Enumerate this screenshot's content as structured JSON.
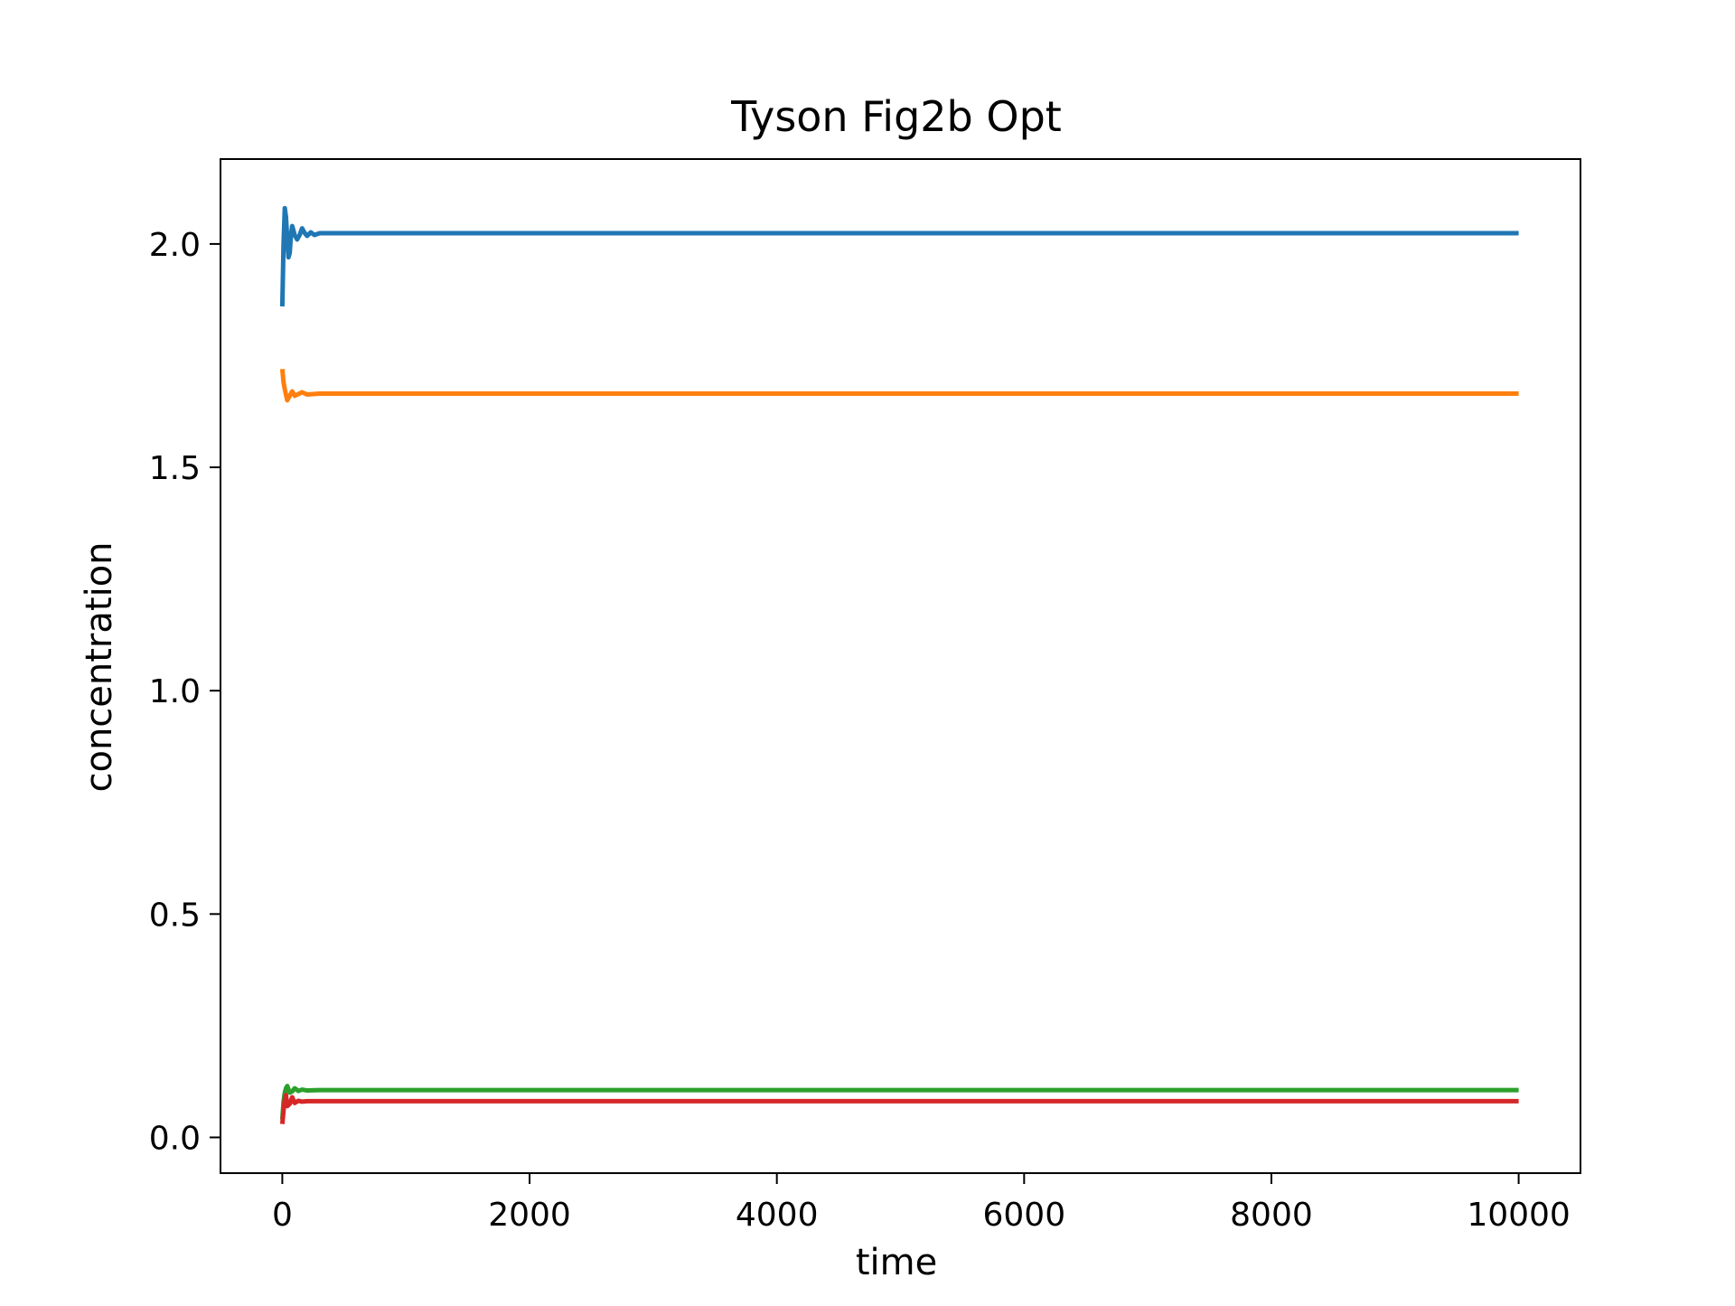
{
  "chart_data": {
    "type": "line",
    "title": "Tyson Fig2b Opt",
    "xlabel": "time",
    "ylabel": "concentration",
    "xlim": [
      -500,
      10500
    ],
    "ylim": [
      -0.08,
      2.19
    ],
    "grid": false,
    "xticks": [
      0,
      2000,
      4000,
      6000,
      8000,
      10000
    ],
    "xtick_labels": [
      "0",
      "2000",
      "4000",
      "6000",
      "8000",
      "10000"
    ],
    "yticks": [
      0.0,
      0.5,
      1.0,
      1.5,
      2.0
    ],
    "ytick_labels": [
      "0.0",
      "0.5",
      "1.0",
      "1.5",
      "2.0"
    ],
    "series": [
      {
        "color": "#1f77b4",
        "x": [
          0,
          10,
          20,
          30,
          40,
          50,
          60,
          70,
          80,
          100,
          120,
          140,
          160,
          180,
          200,
          230,
          260,
          300,
          400,
          10000
        ],
        "values": [
          1.86,
          2.0,
          2.08,
          2.06,
          2.01,
          1.97,
          1.98,
          2.02,
          2.04,
          2.02,
          2.01,
          2.02,
          2.035,
          2.025,
          2.018,
          2.026,
          2.02,
          2.024,
          2.024,
          2.024
        ]
      },
      {
        "color": "#ff7f0e",
        "x": [
          0,
          10,
          20,
          40,
          60,
          80,
          100,
          130,
          160,
          200,
          300,
          10000
        ],
        "values": [
          1.72,
          1.69,
          1.675,
          1.65,
          1.66,
          1.67,
          1.66,
          1.664,
          1.668,
          1.663,
          1.665,
          1.665
        ]
      },
      {
        "color": "#2ca02c",
        "x": [
          0,
          10,
          20,
          30,
          40,
          60,
          80,
          100,
          130,
          160,
          200,
          300,
          10000
        ],
        "values": [
          0.04,
          0.08,
          0.1,
          0.11,
          0.115,
          0.1,
          0.103,
          0.11,
          0.104,
          0.107,
          0.105,
          0.106,
          0.106
        ]
      },
      {
        "color": "#d62728",
        "x": [
          0,
          10,
          20,
          30,
          40,
          60,
          80,
          100,
          130,
          160,
          200,
          300,
          10000
        ],
        "values": [
          0.03,
          0.06,
          0.085,
          0.095,
          0.07,
          0.075,
          0.09,
          0.077,
          0.082,
          0.08,
          0.081,
          0.081,
          0.081
        ]
      }
    ]
  }
}
